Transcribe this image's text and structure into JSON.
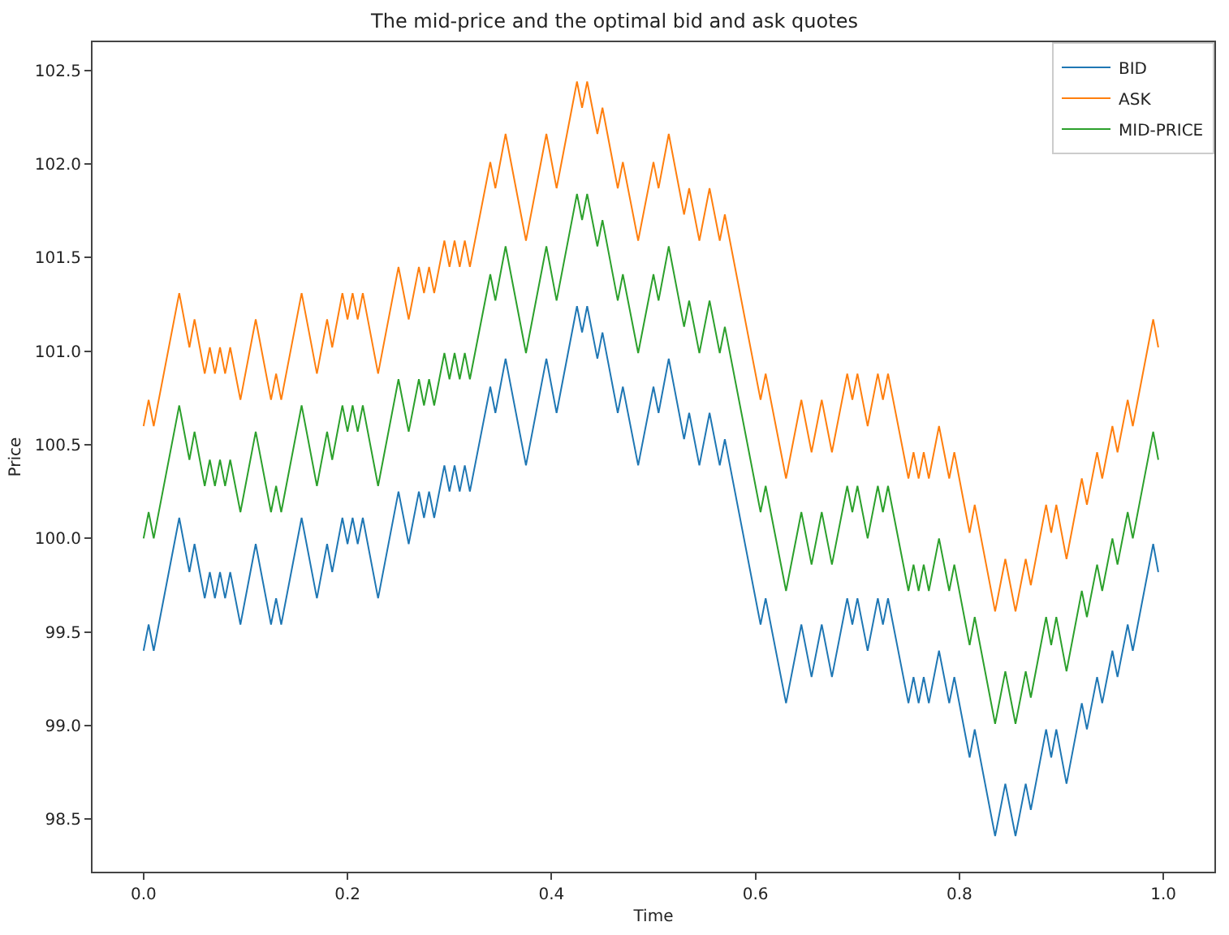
{
  "chart_data": {
    "type": "line",
    "title": "The mid-price and the optimal bid and ask quotes",
    "xlabel": "Time",
    "ylabel": "Price",
    "x": [
      0,
      0.005,
      0.01,
      0.035,
      0.045,
      0.05,
      0.06,
      0.065,
      0.07,
      0.075,
      0.08,
      0.085,
      0.095,
      0.11,
      0.125,
      0.13,
      0.135,
      0.155,
      0.17,
      0.18,
      0.185,
      0.195,
      0.2,
      0.205,
      0.21,
      0.215,
      0.23,
      0.25,
      0.26,
      0.27,
      0.275,
      0.28,
      0.285,
      0.295,
      0.3,
      0.305,
      0.31,
      0.315,
      0.32,
      0.34,
      0.345,
      0.355,
      0.375,
      0.395,
      0.405,
      0.425,
      0.43,
      0.435,
      0.445,
      0.45,
      0.465,
      0.47,
      0.485,
      0.5,
      0.505,
      0.515,
      0.53,
      0.535,
      0.545,
      0.555,
      0.565,
      0.57,
      0.605,
      0.61,
      0.63,
      0.645,
      0.655,
      0.665,
      0.675,
      0.69,
      0.695,
      0.7,
      0.71,
      0.72,
      0.725,
      0.73,
      0.75,
      0.755,
      0.76,
      0.765,
      0.77,
      0.78,
      0.79,
      0.795,
      0.81,
      0.815,
      0.835,
      0.845,
      0.855,
      0.865,
      0.87,
      0.885,
      0.89,
      0.895,
      0.905,
      0.92,
      0.925,
      0.935,
      0.94,
      0.95,
      0.955,
      0.965,
      0.97,
      0.99,
      0.995
    ],
    "series": [
      {
        "name": "BID",
        "color": "#1f77b4",
        "values": [
          99.4,
          99.54,
          99.4,
          100.11,
          99.82,
          99.97,
          99.68,
          99.82,
          99.68,
          99.82,
          99.68,
          99.82,
          99.54,
          99.97,
          99.54,
          99.68,
          99.54,
          100.11,
          99.68,
          99.97,
          99.82,
          100.11,
          99.97,
          100.11,
          99.97,
          100.11,
          99.68,
          100.25,
          99.97,
          100.25,
          100.11,
          100.25,
          100.11,
          100.39,
          100.25,
          100.39,
          100.25,
          100.39,
          100.25,
          100.81,
          100.67,
          100.96,
          100.39,
          100.96,
          100.67,
          101.24,
          101.1,
          101.24,
          100.96,
          101.1,
          100.67,
          100.81,
          100.39,
          100.81,
          100.67,
          100.96,
          100.53,
          100.67,
          100.39,
          100.67,
          100.39,
          100.53,
          99.54,
          99.68,
          99.12,
          99.54,
          99.26,
          99.54,
          99.26,
          99.68,
          99.54,
          99.68,
          99.4,
          99.68,
          99.54,
          99.68,
          99.12,
          99.26,
          99.12,
          99.26,
          99.12,
          99.4,
          99.12,
          99.26,
          98.83,
          98.98,
          98.41,
          98.69,
          98.41,
          98.69,
          98.55,
          98.98,
          98.83,
          98.98,
          98.69,
          99.12,
          98.98,
          99.26,
          99.12,
          99.4,
          99.26,
          99.54,
          99.4,
          99.97,
          99.82
        ]
      },
      {
        "name": "ASK",
        "color": "#ff7f0e",
        "values": [
          100.6,
          100.74,
          100.6,
          101.31,
          101.02,
          101.17,
          100.88,
          101.02,
          100.88,
          101.02,
          100.88,
          101.02,
          100.74,
          101.17,
          100.74,
          100.88,
          100.74,
          101.31,
          100.88,
          101.17,
          101.02,
          101.31,
          101.17,
          101.31,
          101.17,
          101.31,
          100.88,
          101.45,
          101.17,
          101.45,
          101.31,
          101.45,
          101.31,
          101.59,
          101.45,
          101.59,
          101.45,
          101.59,
          101.45,
          102.01,
          101.87,
          102.16,
          101.59,
          102.16,
          101.87,
          102.44,
          102.3,
          102.44,
          102.16,
          102.3,
          101.87,
          102.01,
          101.59,
          102.01,
          101.87,
          102.16,
          101.73,
          101.87,
          101.59,
          101.87,
          101.59,
          101.73,
          100.74,
          100.88,
          100.32,
          100.74,
          100.46,
          100.74,
          100.46,
          100.88,
          100.74,
          100.88,
          100.6,
          100.88,
          100.74,
          100.88,
          100.32,
          100.46,
          100.32,
          100.46,
          100.32,
          100.6,
          100.32,
          100.46,
          100.03,
          100.18,
          99.61,
          99.89,
          99.61,
          99.89,
          99.75,
          100.18,
          100.03,
          100.18,
          99.89,
          100.32,
          100.18,
          100.46,
          100.32,
          100.6,
          100.46,
          100.74,
          100.6,
          101.17,
          101.02
        ]
      },
      {
        "name": "MID-PRICE",
        "color": "#2ca02c",
        "values": [
          100.0,
          100.14,
          100.0,
          100.71,
          100.42,
          100.57,
          100.28,
          100.42,
          100.28,
          100.42,
          100.28,
          100.42,
          100.14,
          100.57,
          100.14,
          100.28,
          100.14,
          100.71,
          100.28,
          100.57,
          100.42,
          100.71,
          100.57,
          100.71,
          100.57,
          100.71,
          100.28,
          100.85,
          100.57,
          100.85,
          100.71,
          100.85,
          100.71,
          100.99,
          100.85,
          100.99,
          100.85,
          100.99,
          100.85,
          101.41,
          101.27,
          101.56,
          100.99,
          101.56,
          101.27,
          101.84,
          101.7,
          101.84,
          101.56,
          101.7,
          101.27,
          101.41,
          100.99,
          101.41,
          101.27,
          101.56,
          101.13,
          101.27,
          100.99,
          101.27,
          100.99,
          101.13,
          100.14,
          100.28,
          99.72,
          100.14,
          99.86,
          100.14,
          99.86,
          100.28,
          100.14,
          100.28,
          100.0,
          100.28,
          100.14,
          100.28,
          99.72,
          99.86,
          99.72,
          99.86,
          99.72,
          100.0,
          99.72,
          99.86,
          99.43,
          99.58,
          99.01,
          99.29,
          99.01,
          99.29,
          99.15,
          99.58,
          99.43,
          99.58,
          99.29,
          99.72,
          99.58,
          99.86,
          99.72,
          100.0,
          99.86,
          100.14,
          100.0,
          100.57,
          100.42
        ]
      }
    ],
    "xlim": [
      -0.05,
      1.05
    ],
    "ylim": [
      98.22,
      102.65
    ],
    "xticks": [
      {
        "value": 0,
        "label": "0.0"
      },
      {
        "value": 0.2,
        "label": "0.2"
      },
      {
        "value": 0.4,
        "label": "0.4"
      },
      {
        "value": 0.6,
        "label": "0.6"
      },
      {
        "value": 0.8,
        "label": "0.8"
      },
      {
        "value": 1,
        "label": "1.0"
      }
    ],
    "yticks": [
      {
        "value": 98.5,
        "label": "98.5"
      },
      {
        "value": 99,
        "label": "99.0"
      },
      {
        "value": 99.5,
        "label": "99.5"
      },
      {
        "value": 100,
        "label": "100.0"
      },
      {
        "value": 100.5,
        "label": "100.5"
      },
      {
        "value": 101,
        "label": "101.0"
      },
      {
        "value": 101.5,
        "label": "101.5"
      },
      {
        "value": 102,
        "label": "102.0"
      },
      {
        "value": 102.5,
        "label": "102.5"
      }
    ],
    "legend": "top right",
    "marker": "none",
    "line_style": "solid"
  }
}
